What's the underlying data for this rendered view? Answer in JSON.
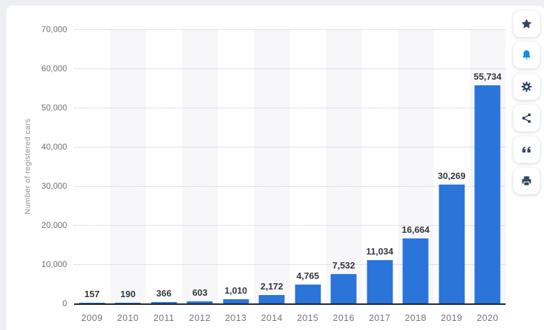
{
  "chart_data": {
    "type": "bar",
    "title": "",
    "categories": [
      "2009",
      "2010",
      "2011",
      "2012",
      "2013",
      "2014",
      "2015",
      "2016",
      "2017",
      "2018",
      "2019",
      "2020"
    ],
    "values": [
      157,
      190,
      366,
      603,
      1010,
      2172,
      4765,
      7532,
      11034,
      16664,
      30269,
      55734
    ],
    "value_labels": [
      "157",
      "190",
      "366",
      "603",
      "1,010",
      "2,172",
      "4,765",
      "7,532",
      "11,034",
      "16,664",
      "30,269",
      "55,734"
    ],
    "xlabel": "",
    "ylabel": "Number of registered cars",
    "ylim": [
      0,
      70000
    ],
    "yticks": [
      {
        "value": 70000,
        "label": "70,000"
      },
      {
        "value": 60000,
        "label": "60,000"
      },
      {
        "value": 50000,
        "label": "50,000"
      },
      {
        "value": 40000,
        "label": "40,000"
      },
      {
        "value": 30000,
        "label": "30,000"
      },
      {
        "value": 20000,
        "label": "20,000"
      },
      {
        "value": 10000,
        "label": "10,000"
      },
      {
        "value": 0,
        "label": "0"
      }
    ],
    "legend": null,
    "grid": "horizontal-dotted",
    "alternating_column_bands": "even columns shaded starting with second category"
  },
  "toolbar": {
    "buttons": [
      {
        "name": "favorite",
        "icon": "star-icon",
        "icon_color": "#33455c"
      },
      {
        "name": "alerts",
        "icon": "bell-icon",
        "icon_color": "#0e8cf1"
      },
      {
        "name": "settings",
        "icon": "gear-icon",
        "icon_color": "#33455c"
      },
      {
        "name": "share",
        "icon": "share-icon",
        "icon_color": "#33455c"
      },
      {
        "name": "cite",
        "icon": "quote-icon",
        "icon_color": "#33455c"
      },
      {
        "name": "print",
        "icon": "printer-icon",
        "icon_color": "#33455c"
      }
    ]
  },
  "colors": {
    "page_bg": "#edeff3",
    "card_bg": "#ffffff",
    "bar": "#2b74d9",
    "band": "#f7f7f9",
    "grid_line": "#c6c6cf",
    "axis_line": "#1b1e24",
    "tick_text": "#6f6f79",
    "value_text": "#33363e",
    "axis_title_text": "#8f8f9a"
  }
}
